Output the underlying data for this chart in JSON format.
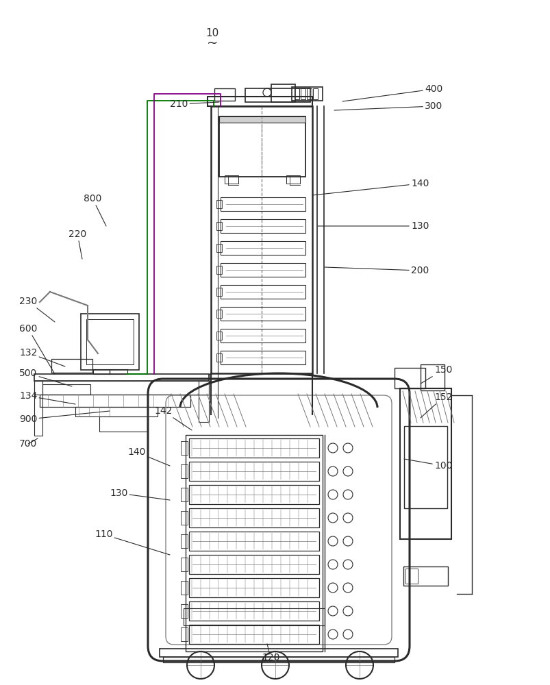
{
  "bg_color": "#ffffff",
  "lc": "#2a2a2a",
  "mg": "#777777",
  "lg": "#bbbbbb",
  "green": "#007700",
  "purple": "#880088",
  "fig_w": 8.04,
  "fig_h": 10.0,
  "dpi": 100
}
